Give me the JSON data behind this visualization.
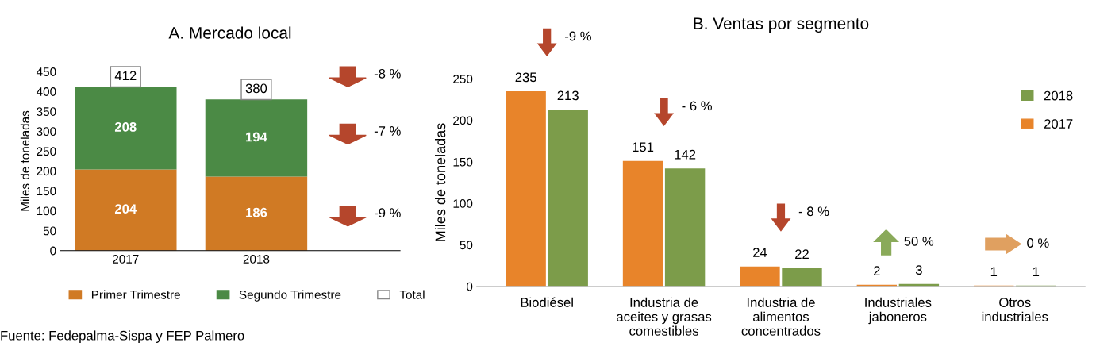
{
  "chart_data": [
    {
      "type": "bar",
      "title": "A. Mercado local",
      "ylabel": "Miles de toneladas",
      "stacked": true,
      "categories": [
        "2017",
        "2018"
      ],
      "series": [
        {
          "name": "Primer Trimestre",
          "color": "#d07a24",
          "values": [
            204,
            186
          ]
        },
        {
          "name": "Segundo Trimestre",
          "color": "#4b8a45",
          "values": [
            208,
            194
          ]
        }
      ],
      "totals": [
        "412",
        "380"
      ],
      "data_labels": true,
      "ylim": [
        0,
        450
      ],
      "yticks": [
        0,
        50,
        100,
        150,
        200,
        250,
        300,
        350,
        400,
        450
      ],
      "legend": "bottom",
      "grid": false,
      "annotations": [
        "-8 %",
        "-7 %",
        "-9 %",
        "Total",
        "Fuente: Fedepalma-Sispa y FEP Palmero"
      ]
    },
    {
      "type": "bar",
      "title": "B. Ventas por segmento",
      "ylabel": "Miles de toneladas",
      "categories": [
        "Biodiésel",
        "Industria de\naceites y grasas\ncomestibles",
        "Industria de\nalimentos\nconcentrados",
        "Industriales\njaboneros",
        "Otros\nindustriales"
      ],
      "series": [
        {
          "name": "2017",
          "color": "#e8842a",
          "values": [
            235,
            151,
            24,
            2,
            1
          ]
        },
        {
          "name": "2018",
          "color": "#7c9c4a",
          "values": [
            213,
            142,
            22,
            3,
            1
          ]
        }
      ],
      "data_labels": true,
      "ylim": [
        0,
        250
      ],
      "yticks": [
        0,
        50,
        100,
        150,
        200,
        250
      ],
      "legend": "top right",
      "grid": false,
      "annotations": [
        "-9 %",
        "- 6 %",
        "- 8 %",
        "50 %",
        "0 %"
      ]
    }
  ]
}
